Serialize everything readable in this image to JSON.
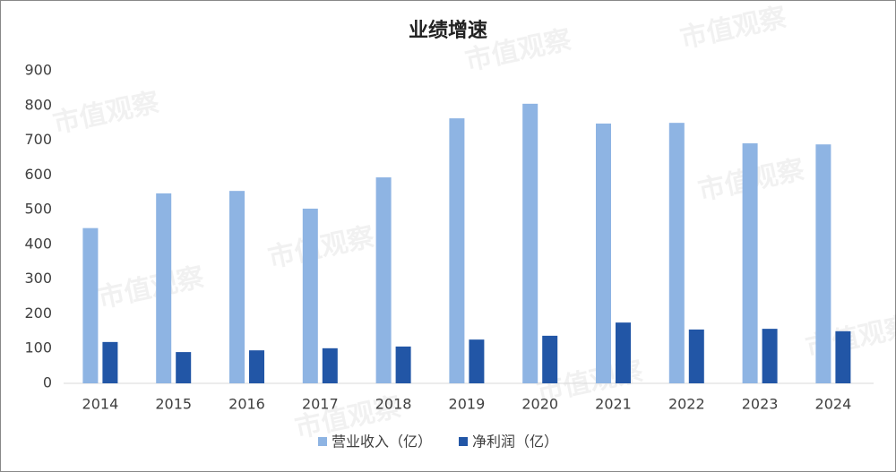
{
  "chart_data": {
    "type": "bar",
    "title": "业绩增速",
    "watermark": "市值观察",
    "categories": [
      "2014",
      "2015",
      "2016",
      "2017",
      "2018",
      "2019",
      "2020",
      "2021",
      "2022",
      "2023",
      "2024"
    ],
    "series": [
      {
        "name": "营业收入（亿）",
        "color": "#8eb4e3",
        "values": [
          447,
          547,
          554,
          503,
          593,
          763,
          805,
          748,
          750,
          691,
          688
        ]
      },
      {
        "name": "净利润（亿）",
        "color": "#2256a6",
        "values": [
          119,
          90,
          95,
          101,
          106,
          126,
          137,
          175,
          155,
          157,
          150
        ]
      }
    ],
    "ylim": [
      0,
      900
    ],
    "yticks": [
      0,
      100,
      200,
      300,
      400,
      500,
      600,
      700,
      800,
      900
    ],
    "grid": false,
    "legend": "bottom"
  }
}
